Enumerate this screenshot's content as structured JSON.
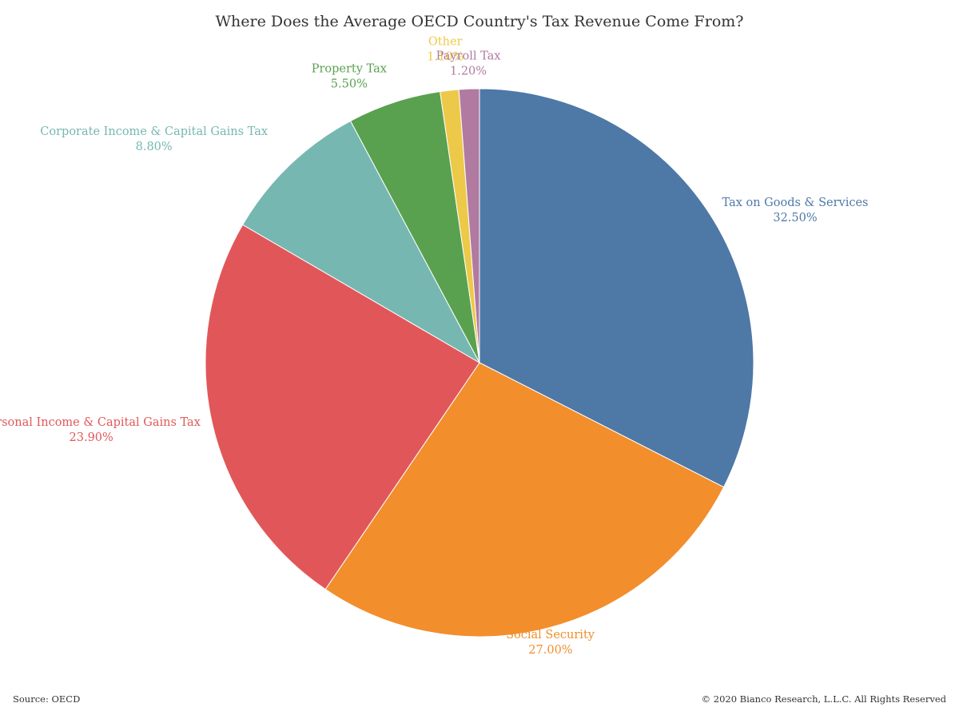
{
  "chart_data": {
    "type": "pie",
    "title": "Where Does the Average OECD Country's Tax Revenue Come From?",
    "slices": [
      {
        "label": "Tax on Goods & Services",
        "value": 32.5,
        "value_label": "32.50%",
        "color": "#4e78a6"
      },
      {
        "label": "Social Security",
        "value": 27.0,
        "value_label": "27.00%",
        "color": "#f28e2c"
      },
      {
        "label": "Personal Income & Capital Gains Tax",
        "value": 23.9,
        "value_label": "23.90%",
        "color": "#e15759"
      },
      {
        "label": "Corporate Income & Capital Gains Tax",
        "value": 8.8,
        "value_label": "8.80%",
        "color": "#76b7b2"
      },
      {
        "label": "Property Tax",
        "value": 5.5,
        "value_label": "5.50%",
        "color": "#59a14f"
      },
      {
        "label": "Other",
        "value": 1.1,
        "value_label": "1.10%",
        "color": "#edc949"
      },
      {
        "label": "Payroll Tax",
        "value": 1.2,
        "value_label": "1.20%",
        "color": "#b07aa1"
      }
    ]
  },
  "footer": {
    "source": "Source: OECD",
    "copyright": "© 2020 Bianco Research, L.L.C. All Rights Reserved"
  }
}
